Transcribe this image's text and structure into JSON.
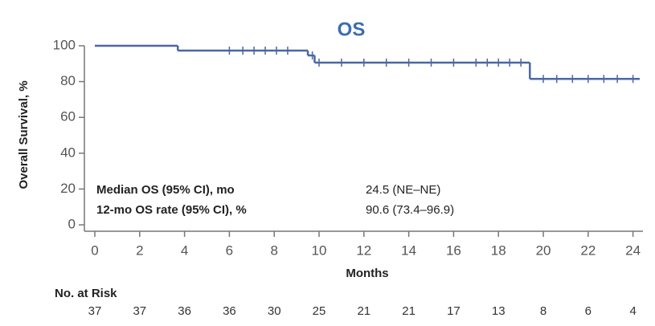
{
  "chart_data": {
    "type": "step",
    "title": "OS",
    "xlabel": "Months",
    "ylabel": "Overall Survival, %",
    "xlim": [
      0,
      24.3
    ],
    "ylim": [
      0,
      100
    ],
    "xticks": [
      0,
      2,
      4,
      6,
      8,
      10,
      12,
      14,
      16,
      18,
      20,
      22,
      24
    ],
    "yticks": [
      0,
      20,
      40,
      60,
      80,
      100
    ],
    "series": [
      {
        "name": "OS",
        "color": "#4a67a6",
        "x": [
          0,
          3.7,
          9.5,
          9.8,
          19.4,
          24.3
        ],
        "values": [
          100,
          97.3,
          94.6,
          90.6,
          81.5,
          81.5
        ],
        "censored_x": [
          6,
          6.6,
          7.1,
          7.6,
          8.1,
          8.6,
          9.7,
          10,
          11,
          12,
          13,
          14,
          15,
          16,
          17,
          17.5,
          18,
          18.5,
          19,
          20,
          20.6,
          21.3,
          22,
          22.7,
          23.3,
          24
        ],
        "censored_values": [
          97.3,
          97.3,
          97.3,
          97.3,
          97.3,
          97.3,
          94.6,
          90.6,
          90.6,
          90.6,
          90.6,
          90.6,
          90.6,
          90.6,
          90.6,
          90.6,
          90.6,
          90.6,
          90.6,
          81.5,
          81.5,
          81.5,
          81.5,
          81.5,
          81.5,
          81.5
        ]
      }
    ],
    "annotations": [
      {
        "label": "Median OS (95% CI), mo",
        "value": "24.5 (NE–NE)"
      },
      {
        "label": "12-mo OS rate (95% CI), %",
        "value": "90.6 (73.4–96.9)"
      }
    ],
    "at_risk": {
      "label": "No. at Risk",
      "values": [
        37,
        37,
        36,
        36,
        30,
        25,
        21,
        21,
        17,
        13,
        8,
        6,
        4
      ]
    }
  }
}
